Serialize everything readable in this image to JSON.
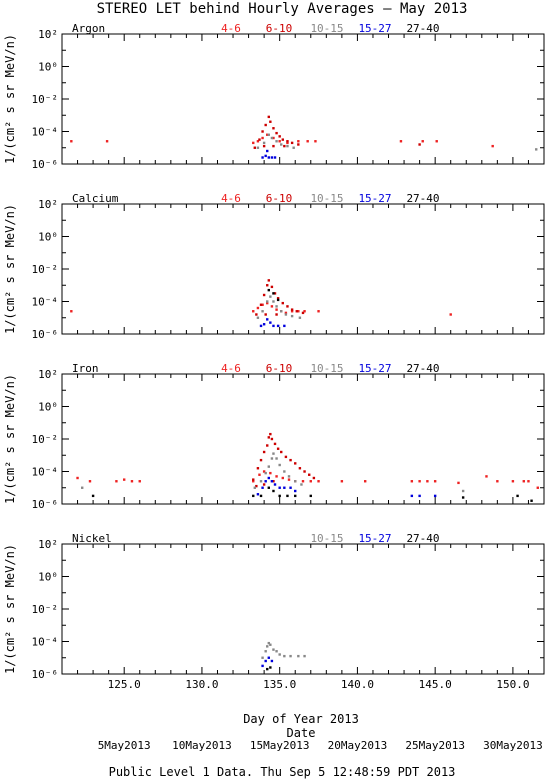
{
  "title": "STEREO LET behind Hourly Averages – May 2013",
  "footer": "Public Level 1 Data. Thu Sep  5 12:48:59 PDT 2013",
  "colors": {
    "4-6": "#ee2222",
    "6-10": "#cc0000",
    "10-15": "#888888",
    "15-27": "#0000dd",
    "27-40": "#000000"
  },
  "chart_data": {
    "type": "scatter",
    "xlabel": "Day of Year 2013",
    "ylabel": "1/(cm² s sr MeV/n)",
    "x_sublabel": "Date",
    "xlim": [
      121,
      152
    ],
    "ylog": true,
    "ylim_exp": [
      -6,
      2
    ],
    "x_ticks": [
      125.0,
      130.0,
      135.0,
      140.0,
      145.0,
      150.0
    ],
    "x_tick_labels": [
      "125.0",
      "130.0",
      "135.0",
      "140.0",
      "145.0",
      "150.0"
    ],
    "y_tick_exps": [
      2,
      0,
      -2,
      -4,
      -6
    ],
    "y_tick_labels": [
      "10²",
      "10⁰",
      "10⁻²",
      "10⁻⁴",
      "10⁻⁶"
    ],
    "date_ticks": [
      {
        "doy": 125,
        "label": "5May2013"
      },
      {
        "doy": 130,
        "label": "10May2013"
      },
      {
        "doy": 135,
        "label": "15May2013"
      },
      {
        "doy": 140,
        "label": "20May2013"
      },
      {
        "doy": 145,
        "label": "25May2013"
      },
      {
        "doy": 150,
        "label": "30May2013"
      }
    ],
    "panels": [
      {
        "name": "Argon",
        "legend": [
          "4-6",
          "6-10",
          "10-15",
          "15-27",
          "27-40"
        ],
        "series": [
          {
            "name": "4-6",
            "points": [
              [
                121.6,
                -4.6
              ],
              [
                123.9,
                -4.6
              ],
              [
                133.3,
                -4.7
              ],
              [
                133.6,
                -4.6
              ],
              [
                133.9,
                -4.4
              ],
              [
                134.2,
                -4.2
              ],
              [
                134.6,
                -4.4
              ],
              [
                135.0,
                -4.6
              ],
              [
                135.5,
                -4.7
              ],
              [
                136.2,
                -4.6
              ],
              [
                136.8,
                -4.6
              ],
              [
                137.3,
                -4.6
              ],
              [
                142.8,
                -4.6
              ],
              [
                144.2,
                -4.6
              ],
              [
                145.1,
                -4.6
              ],
              [
                148.7,
                -4.9
              ]
            ]
          },
          {
            "name": "6-10",
            "points": [
              [
                133.4,
                -5.0
              ],
              [
                133.7,
                -4.5
              ],
              [
                133.9,
                -4.0
              ],
              [
                134.1,
                -3.6
              ],
              [
                134.3,
                -3.1
              ],
              [
                134.4,
                -3.4
              ],
              [
                134.6,
                -3.8
              ],
              [
                134.8,
                -4.1
              ],
              [
                135.0,
                -4.3
              ],
              [
                135.2,
                -4.5
              ],
              [
                135.5,
                -4.6
              ],
              [
                135.8,
                -4.7
              ],
              [
                136.2,
                -4.8
              ],
              [
                134.0,
                -4.9
              ],
              [
                134.6,
                -4.9
              ],
              [
                135.3,
                -4.9
              ],
              [
                144.0,
                -4.8
              ]
            ]
          },
          {
            "name": "10-15",
            "points": [
              [
                133.6,
                -5.0
              ],
              [
                134.0,
                -4.7
              ],
              [
                134.3,
                -4.2
              ],
              [
                134.5,
                -4.4
              ],
              [
                134.8,
                -4.6
              ],
              [
                135.1,
                -4.8
              ],
              [
                135.5,
                -4.9
              ],
              [
                135.9,
                -5.0
              ],
              [
                151.5,
                -5.1
              ]
            ]
          },
          {
            "name": "15-27",
            "points": [
              [
                133.9,
                -5.6
              ],
              [
                134.1,
                -5.5
              ],
              [
                134.3,
                -5.6
              ],
              [
                134.5,
                -5.6
              ],
              [
                134.7,
                -5.6
              ],
              [
                134.2,
                -5.2
              ]
            ]
          },
          {
            "name": "27-40",
            "points": []
          }
        ]
      },
      {
        "name": "Calcium",
        "legend": [
          "4-6",
          "6-10",
          "10-15",
          "15-27",
          "27-40"
        ],
        "series": [
          {
            "name": "4-6",
            "points": [
              [
                121.6,
                -4.6
              ],
              [
                133.3,
                -4.6
              ],
              [
                133.6,
                -4.4
              ],
              [
                133.9,
                -4.2
              ],
              [
                134.2,
                -4.1
              ],
              [
                134.5,
                -4.3
              ],
              [
                134.8,
                -4.5
              ],
              [
                135.1,
                -4.6
              ],
              [
                135.4,
                -4.7
              ],
              [
                135.8,
                -4.6
              ],
              [
                136.2,
                -4.6
              ],
              [
                136.6,
                -4.6
              ],
              [
                137.5,
                -4.6
              ],
              [
                146.0,
                -4.8
              ]
            ]
          },
          {
            "name": "6-10",
            "points": [
              [
                133.5,
                -4.8
              ],
              [
                133.8,
                -4.2
              ],
              [
                134.0,
                -3.6
              ],
              [
                134.2,
                -3.0
              ],
              [
                134.3,
                -2.7
              ],
              [
                134.5,
                -3.1
              ],
              [
                134.7,
                -3.5
              ],
              [
                134.9,
                -3.8
              ],
              [
                135.2,
                -4.1
              ],
              [
                135.5,
                -4.3
              ],
              [
                135.8,
                -4.5
              ],
              [
                136.1,
                -4.6
              ],
              [
                136.5,
                -4.7
              ],
              [
                134.1,
                -4.8
              ],
              [
                134.8,
                -4.8
              ]
            ]
          },
          {
            "name": "10-15",
            "points": [
              [
                133.6,
                -5.0
              ],
              [
                133.9,
                -4.6
              ],
              [
                134.2,
                -4.0
              ],
              [
                134.4,
                -3.7
              ],
              [
                134.6,
                -4.0
              ],
              [
                134.8,
                -4.3
              ],
              [
                135.1,
                -4.6
              ],
              [
                135.4,
                -4.8
              ],
              [
                135.8,
                -4.9
              ],
              [
                136.3,
                -5.0
              ]
            ]
          },
          {
            "name": "15-27",
            "points": [
              [
                133.8,
                -5.5
              ],
              [
                134.0,
                -5.4
              ],
              [
                134.2,
                -5.1
              ],
              [
                134.4,
                -5.3
              ],
              [
                134.6,
                -5.5
              ],
              [
                134.9,
                -5.5
              ],
              [
                135.3,
                -5.5
              ]
            ]
          },
          {
            "name": "27-40",
            "points": [
              [
                134.3,
                -3.3
              ],
              [
                134.6,
                -3.5
              ],
              [
                134.9,
                -3.9
              ]
            ]
          }
        ]
      },
      {
        "name": "Iron",
        "legend": [
          "4-6",
          "6-10",
          "10-15",
          "15-27",
          "27-40"
        ],
        "series": [
          {
            "name": "4-6",
            "points": [
              [
                122.0,
                -4.4
              ],
              [
                122.8,
                -4.6
              ],
              [
                124.5,
                -4.6
              ],
              [
                125.0,
                -4.5
              ],
              [
                125.5,
                -4.6
              ],
              [
                126.0,
                -4.6
              ],
              [
                133.3,
                -4.6
              ],
              [
                133.7,
                -4.2
              ],
              [
                134.0,
                -4.0
              ],
              [
                134.4,
                -4.1
              ],
              [
                134.8,
                -4.3
              ],
              [
                135.2,
                -4.4
              ],
              [
                135.6,
                -4.5
              ],
              [
                136.0,
                -4.6
              ],
              [
                136.5,
                -4.6
              ],
              [
                137.0,
                -4.6
              ],
              [
                137.5,
                -4.6
              ],
              [
                139.0,
                -4.6
              ],
              [
                140.5,
                -4.6
              ],
              [
                143.5,
                -4.6
              ],
              [
                144.0,
                -4.6
              ],
              [
                144.5,
                -4.6
              ],
              [
                145.0,
                -4.6
              ],
              [
                146.5,
                -4.7
              ],
              [
                148.3,
                -4.3
              ],
              [
                149.0,
                -4.6
              ],
              [
                150.0,
                -4.6
              ],
              [
                150.7,
                -4.6
              ],
              [
                151.0,
                -4.6
              ],
              [
                151.6,
                -5.0
              ]
            ]
          },
          {
            "name": "6-10",
            "points": [
              [
                133.3,
                -4.5
              ],
              [
                133.6,
                -3.8
              ],
              [
                133.8,
                -3.3
              ],
              [
                134.0,
                -2.8
              ],
              [
                134.2,
                -2.4
              ],
              [
                134.3,
                -1.9
              ],
              [
                134.4,
                -1.7
              ],
              [
                134.5,
                -2.0
              ],
              [
                134.7,
                -2.3
              ],
              [
                134.9,
                -2.6
              ],
              [
                135.1,
                -2.8
              ],
              [
                135.4,
                -3.1
              ],
              [
                135.7,
                -3.3
              ],
              [
                136.0,
                -3.5
              ],
              [
                136.3,
                -3.8
              ],
              [
                136.6,
                -4.0
              ],
              [
                136.9,
                -4.2
              ],
              [
                137.2,
                -4.4
              ],
              [
                133.5,
                -4.9
              ],
              [
                134.0,
                -4.8
              ],
              [
                134.6,
                -4.6
              ]
            ]
          },
          {
            "name": "10-15",
            "points": [
              [
                122.3,
                -5.0
              ],
              [
                133.4,
                -5.0
              ],
              [
                133.8,
                -4.6
              ],
              [
                134.1,
                -4.1
              ],
              [
                134.3,
                -3.7
              ],
              [
                134.5,
                -3.2
              ],
              [
                134.6,
                -2.9
              ],
              [
                134.8,
                -3.2
              ],
              [
                135.0,
                -3.6
              ],
              [
                135.3,
                -4.0
              ],
              [
                135.6,
                -4.3
              ],
              [
                136.0,
                -4.6
              ],
              [
                136.4,
                -4.8
              ],
              [
                146.8,
                -5.2
              ]
            ]
          },
          {
            "name": "15-27",
            "points": [
              [
                133.6,
                -5.4
              ],
              [
                133.9,
                -5.0
              ],
              [
                134.1,
                -4.6
              ],
              [
                134.3,
                -4.4
              ],
              [
                134.5,
                -4.6
              ],
              [
                134.7,
                -4.8
              ],
              [
                135.0,
                -5.0
              ],
              [
                135.3,
                -5.0
              ],
              [
                135.7,
                -5.0
              ],
              [
                136.0,
                -5.2
              ],
              [
                143.5,
                -5.5
              ],
              [
                144.0,
                -5.5
              ],
              [
                145.0,
                -5.5
              ]
            ]
          },
          {
            "name": "27-40",
            "points": [
              [
                123.0,
                -5.5
              ],
              [
                133.3,
                -5.5
              ],
              [
                133.8,
                -5.5
              ],
              [
                134.3,
                -5.0
              ],
              [
                134.6,
                -5.2
              ],
              [
                135.0,
                -5.5
              ],
              [
                135.5,
                -5.5
              ],
              [
                136.0,
                -5.5
              ],
              [
                137.0,
                -5.5
              ],
              [
                146.8,
                -5.6
              ],
              [
                150.3,
                -5.5
              ],
              [
                151.2,
                -5.8
              ]
            ]
          }
        ]
      },
      {
        "name": "Nickel",
        "legend": [
          "10-15",
          "15-27",
          "27-40"
        ],
        "series": [
          {
            "name": "10-15",
            "points": [
              [
                133.9,
                -5.0
              ],
              [
                134.1,
                -4.6
              ],
              [
                134.2,
                -4.3
              ],
              [
                134.3,
                -4.1
              ],
              [
                134.4,
                -4.2
              ],
              [
                134.6,
                -4.5
              ],
              [
                134.8,
                -4.6
              ],
              [
                135.0,
                -4.8
              ],
              [
                135.3,
                -4.9
              ],
              [
                135.7,
                -4.9
              ],
              [
                136.2,
                -4.9
              ],
              [
                136.6,
                -4.9
              ]
            ]
          },
          {
            "name": "15-27",
            "points": [
              [
                133.9,
                -5.5
              ],
              [
                134.1,
                -5.2
              ],
              [
                134.3,
                -5.0
              ],
              [
                134.5,
                -5.2
              ]
            ]
          },
          {
            "name": "27-40",
            "points": [
              [
                134.2,
                -5.7
              ],
              [
                134.4,
                -5.6
              ]
            ]
          }
        ]
      }
    ]
  }
}
